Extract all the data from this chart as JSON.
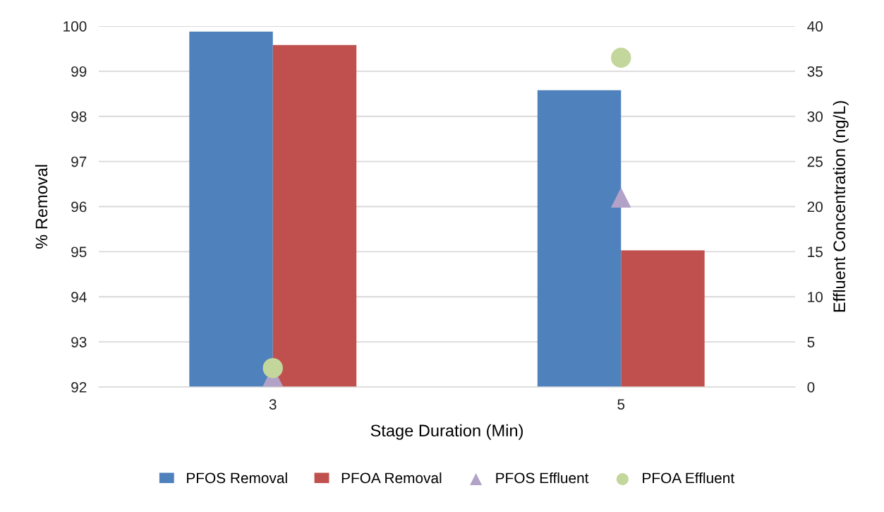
{
  "chart_data": {
    "type": "bar",
    "xlabel": "Stage Duration (Min)",
    "ylabel": "% Removal",
    "y2label": "Effluent Concentration (ng/L)",
    "categories": [
      "3",
      "5"
    ],
    "series": [
      {
        "name": "PFOS Removal",
        "color": "#4f81bd",
        "values": [
          99.88,
          98.58
        ]
      },
      {
        "name": "PFOA Removal",
        "color": "#c0504d",
        "values": [
          99.58,
          95.03
        ]
      },
      {
        "name": "PFOS Effluent",
        "color": "#b3a2c7",
        "type": "scatter",
        "axis": "y2",
        "marker": "triangle",
        "values": [
          1.2,
          21.0
        ]
      },
      {
        "name": "PFOA Effluent",
        "color": "#c3d69b",
        "type": "scatter",
        "axis": "y2",
        "marker": "circle",
        "values": [
          2.1,
          36.5
        ]
      }
    ],
    "ylim": [
      92,
      100
    ],
    "yticks": [
      92,
      93,
      94,
      95,
      96,
      97,
      98,
      99,
      100
    ],
    "y2lim": [
      0,
      40
    ],
    "y2ticks": [
      0,
      5,
      10,
      15,
      20,
      25,
      30,
      35,
      40
    ],
    "grid": "y",
    "legend": "bottom"
  }
}
